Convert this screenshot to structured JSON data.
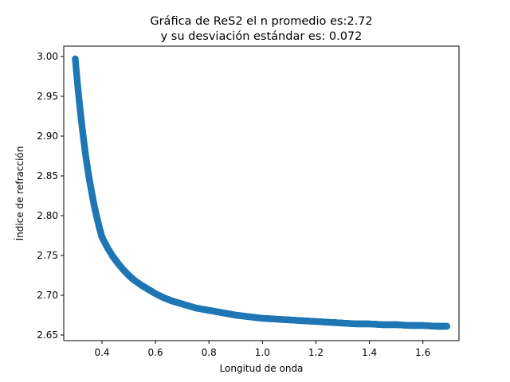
{
  "chart_data": {
    "type": "scatter",
    "title_line1": "Gráfica de ReS2 el n promedio es:2.72",
    "title_line2": "y su desviación estándar es: 0.072",
    "xlabel": "Longitud de onda",
    "ylabel": "Índice de refracción",
    "xlim": [
      0.257,
      1.735
    ],
    "ylim": [
      2.643,
      3.013
    ],
    "xticks": [
      0.4,
      0.6,
      0.8,
      1.0,
      1.2,
      1.4,
      1.6
    ],
    "xtick_labels": [
      "0.4",
      "0.6",
      "0.8",
      "1.0",
      "1.2",
      "1.4",
      "1.6"
    ],
    "yticks": [
      2.65,
      2.7,
      2.75,
      2.8,
      2.85,
      2.9,
      2.95,
      3.0
    ],
    "ytick_labels": [
      "2.65",
      "2.70",
      "2.75",
      "2.80",
      "2.85",
      "2.90",
      "2.95",
      "3.00"
    ],
    "grid": false,
    "legend": "none",
    "marker_color": "#1f77b4",
    "series": [
      {
        "x": [
          0.3,
          0.31,
          0.32,
          0.33,
          0.34,
          0.35,
          0.36,
          0.37,
          0.38,
          0.39,
          0.4,
          0.42,
          0.44,
          0.46,
          0.48,
          0.5,
          0.52,
          0.55,
          0.58,
          0.6,
          0.63,
          0.66,
          0.7,
          0.75,
          0.8,
          0.85,
          0.9,
          0.95,
          1.0,
          1.05,
          1.1,
          1.15,
          1.2,
          1.25,
          1.3,
          1.35,
          1.4,
          1.45,
          1.5,
          1.55,
          1.6,
          1.65,
          1.69
        ],
        "y": [
          2.997,
          2.96,
          2.928,
          2.899,
          2.873,
          2.851,
          2.832,
          2.814,
          2.799,
          2.785,
          2.773,
          2.76,
          2.749,
          2.74,
          2.732,
          2.725,
          2.719,
          2.712,
          2.706,
          2.702,
          2.697,
          2.693,
          2.689,
          2.684,
          2.681,
          2.678,
          2.675,
          2.673,
          2.671,
          2.67,
          2.669,
          2.668,
          2.667,
          2.666,
          2.665,
          2.664,
          2.664,
          2.663,
          2.663,
          2.662,
          2.662,
          2.661,
          2.661
        ]
      }
    ]
  }
}
